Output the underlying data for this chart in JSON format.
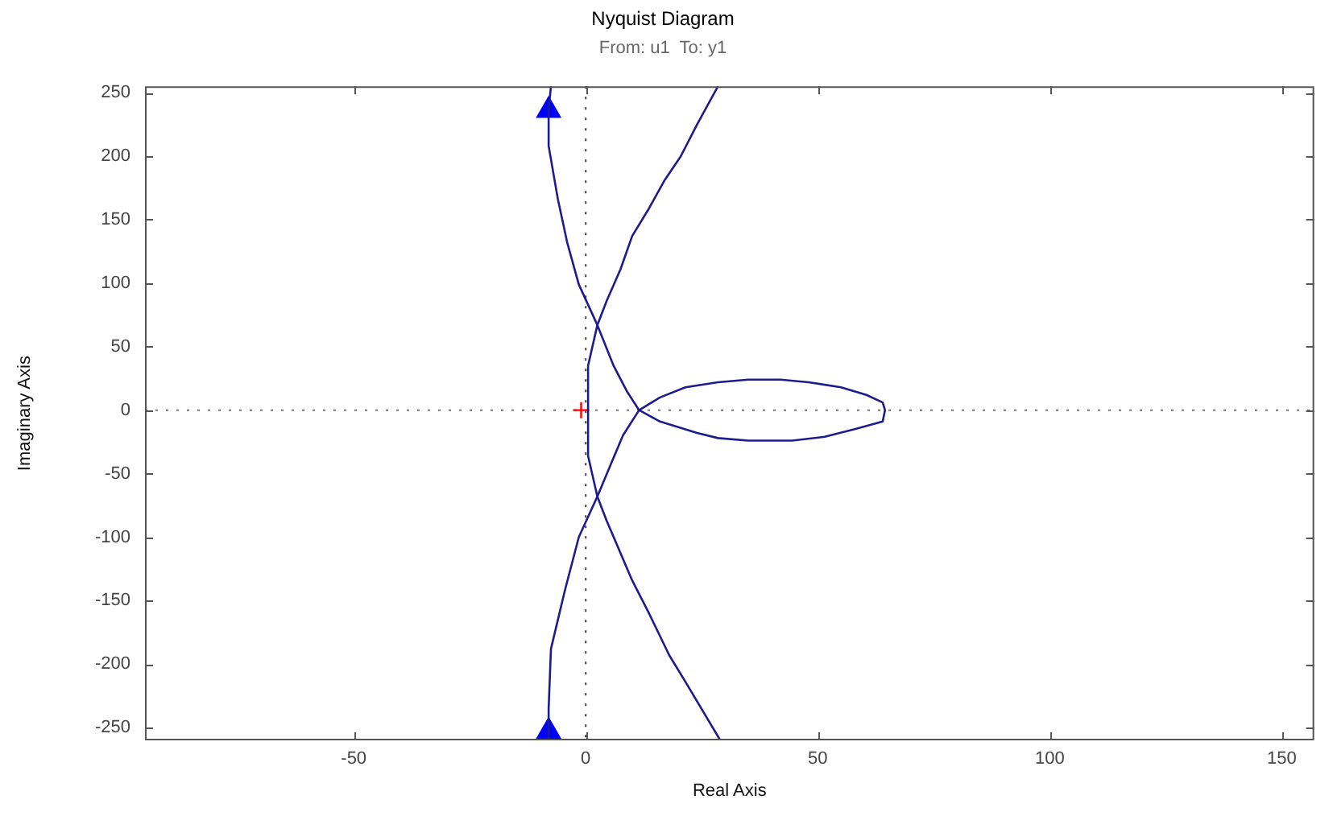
{
  "chart_data": {
    "type": "line",
    "title": "Nyquist Diagram",
    "subtitle": "From: u1  To: y1",
    "xlabel": "Real Axis",
    "ylabel": "Imaginary Axis",
    "xlim": [
      -95,
      157
    ],
    "xticks": [
      -50,
      0,
      50,
      100,
      150
    ],
    "ylim": [
      -260,
      255
    ],
    "yticks": [
      -250,
      -200,
      -150,
      -100,
      -50,
      0,
      50,
      100,
      150,
      200,
      250
    ],
    "grid": false,
    "marker": "none",
    "line_style": "solid",
    "ref_lines": [
      {
        "axis": "x",
        "value": 0,
        "line_style": "dotted",
        "color": "#404040"
      },
      {
        "axis": "y",
        "value": 0,
        "line_style": "dotted",
        "color": "#777777"
      }
    ],
    "series": [
      {
        "color": "#1c1c8c",
        "x": [
          -7.5,
          -8,
          -8,
          -6,
          -4,
          -1.5,
          2.5,
          6,
          9,
          11.5,
          16,
          24,
          28.5,
          35,
          44.5,
          51.5,
          58,
          64,
          64.5,
          64,
          60.5,
          55,
          48,
          42,
          35,
          28.5,
          21.5,
          16,
          11.5,
          8,
          2.5,
          -1.5,
          -4.5,
          -7.5,
          -8,
          -8
        ],
        "values": [
          255,
          236,
          208,
          166,
          132,
          99,
          67,
          35,
          14,
          0,
          -9,
          -18,
          -22,
          -24,
          -24,
          -21,
          -15,
          -9,
          0,
          6,
          12,
          18,
          22,
          24,
          24,
          22,
          18,
          10,
          0,
          -20,
          -68,
          -100,
          -142,
          -188,
          -235,
          -260
        ]
      },
      {
        "color": "#1c1c8c",
        "x": [
          28.5,
          24,
          20.5,
          17,
          13.5,
          10,
          7.5,
          4.5,
          2.5,
          0.5,
          0.5,
          2.5,
          4.5,
          10,
          13.5,
          18,
          21.5,
          29
        ],
        "values": [
          255,
          225,
          200,
          181,
          158,
          137,
          111,
          86,
          67,
          35,
          -36,
          -68,
          -87,
          -134,
          -159,
          -193,
          -214,
          -260
        ]
      },
      {
        "type": "scatter",
        "marker": "triangle",
        "color": "#0000ff",
        "x": [
          -8,
          -8
        ],
        "values": [
          236,
          -253
        ]
      },
      {
        "type": "scatter",
        "marker": "cross",
        "color": "#ff0000",
        "x": [
          -1
        ],
        "values": [
          0
        ]
      }
    ]
  }
}
